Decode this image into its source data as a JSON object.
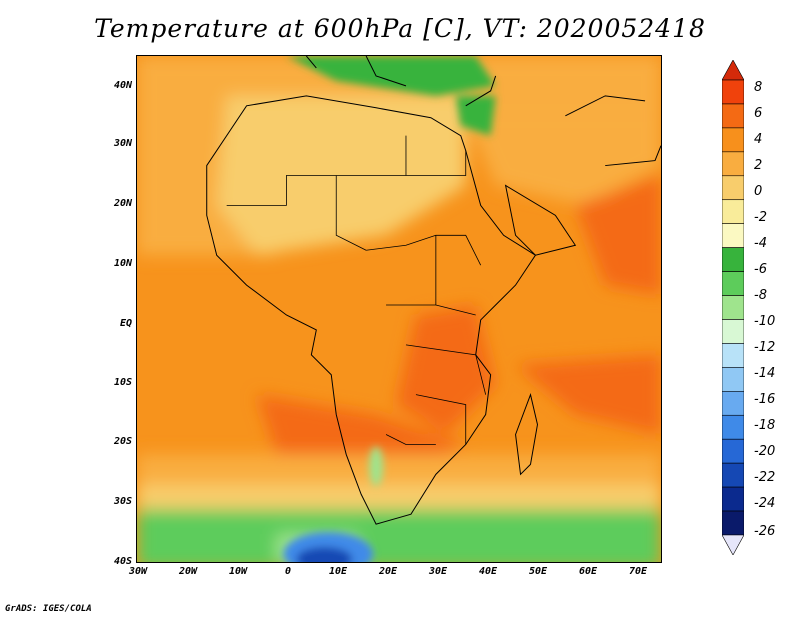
{
  "title": "Temperature at 600hPa [C], VT: 2020052418",
  "footer": "GrADS: IGES/COLA",
  "map": {
    "projection": "latlon",
    "lon_range": [
      -30,
      75
    ],
    "lat_range": [
      -40,
      45
    ],
    "lat_ticks": [
      "40N",
      "30N",
      "20N",
      "10N",
      "EQ",
      "10S",
      "20S",
      "30S",
      "40S"
    ],
    "lon_ticks": [
      "30W",
      "20W",
      "10W",
      "0",
      "10E",
      "20E",
      "30E",
      "40E",
      "50E",
      "60E",
      "70E"
    ]
  },
  "colorbar": {
    "labels": [
      "8",
      "6",
      "4",
      "2",
      "0",
      "-2",
      "-4",
      "-6",
      "-8",
      "-10",
      "-12",
      "-14",
      "-16",
      "-18",
      "-20",
      "-22",
      "-24",
      "-26"
    ],
    "colors": [
      "#d42a0a",
      "#f0420c",
      "#f46a14",
      "#f7901c",
      "#f9ad40",
      "#f8cd6c",
      "#f9ec9a",
      "#fbf9c2",
      "#37b33c",
      "#5dcc5b",
      "#9fe48d",
      "#d8f8d4",
      "#b8e2f8",
      "#90c8f4",
      "#68aaf0",
      "#3f8ae8",
      "#2668d6",
      "#1548b4",
      "#0b2a8e",
      "#0a1a6a",
      "#e6e6fa"
    ]
  }
}
